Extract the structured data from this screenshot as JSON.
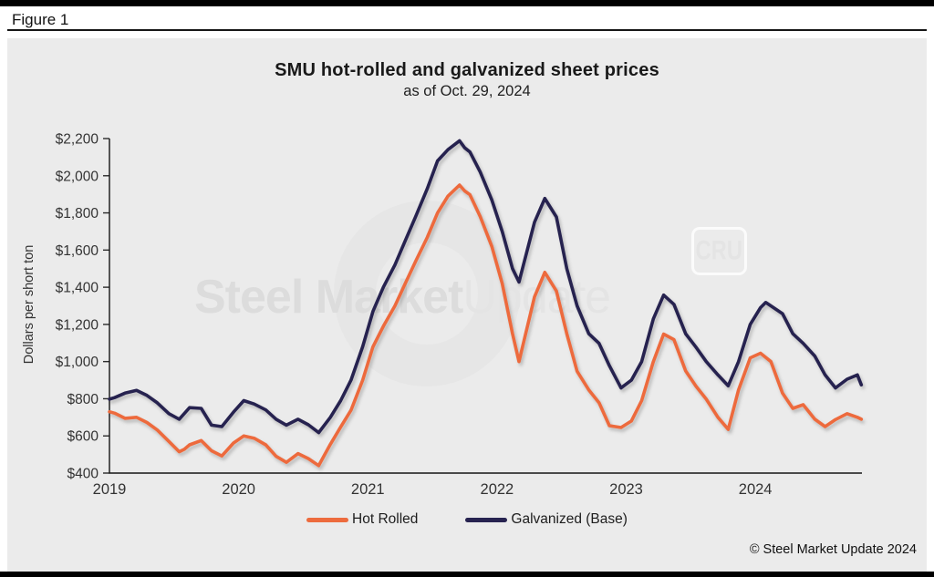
{
  "figure_label": "Figure 1",
  "copyright": "© Steel Market Update 2024",
  "watermark": {
    "bold": "Steel Market",
    "light": "Update",
    "badge": "CRU"
  },
  "colors": {
    "hot_rolled": "#ed6b3e",
    "galvanized": "#272350",
    "panel_background": "#ebebeb",
    "axis": "#141414"
  },
  "chart_data": {
    "type": "line",
    "title": "SMU hot-rolled and galvanized sheet prices",
    "subtitle": "as of Oct. 29, 2024",
    "ylabel": "Dollars per short ton",
    "xlabel": "",
    "ylim": [
      400,
      2200
    ],
    "x_range": [
      2019,
      2024.825
    ],
    "grid": false,
    "legend_position": "bottom",
    "yticks": [
      400,
      600,
      800,
      1000,
      1200,
      1400,
      1600,
      1800,
      2000,
      2200
    ],
    "ytick_labels": [
      "$400",
      "$600",
      "$800",
      "$1,000",
      "$1,200",
      "$1,400",
      "$1,600",
      "$1,800",
      "$2,000",
      "$2,200"
    ],
    "xticks": [
      2019,
      2020,
      2021,
      2022,
      2023,
      2024
    ],
    "x_unit": "year (decimal = fraction of year)",
    "y_unit": "USD per short ton",
    "series": [
      {
        "name": "Hot Rolled",
        "color": "#ed6b3e",
        "points": [
          [
            2019.0,
            730
          ],
          [
            2019.04,
            722
          ],
          [
            2019.12,
            695
          ],
          [
            2019.21,
            700
          ],
          [
            2019.29,
            672
          ],
          [
            2019.37,
            632
          ],
          [
            2019.46,
            570
          ],
          [
            2019.54,
            515
          ],
          [
            2019.58,
            528
          ],
          [
            2019.62,
            552
          ],
          [
            2019.71,
            575
          ],
          [
            2019.79,
            520
          ],
          [
            2019.87,
            492
          ],
          [
            2019.96,
            562
          ],
          [
            2020.04,
            600
          ],
          [
            2020.12,
            588
          ],
          [
            2020.21,
            552
          ],
          [
            2020.29,
            490
          ],
          [
            2020.37,
            458
          ],
          [
            2020.46,
            505
          ],
          [
            2020.54,
            478
          ],
          [
            2020.62,
            440
          ],
          [
            2020.71,
            555
          ],
          [
            2020.79,
            648
          ],
          [
            2020.87,
            738
          ],
          [
            2020.96,
            900
          ],
          [
            2021.04,
            1080
          ],
          [
            2021.12,
            1190
          ],
          [
            2021.21,
            1300
          ],
          [
            2021.29,
            1420
          ],
          [
            2021.37,
            1540
          ],
          [
            2021.46,
            1668
          ],
          [
            2021.54,
            1800
          ],
          [
            2021.62,
            1890
          ],
          [
            2021.71,
            1950
          ],
          [
            2021.75,
            1918
          ],
          [
            2021.79,
            1898
          ],
          [
            2021.87,
            1780
          ],
          [
            2021.96,
            1620
          ],
          [
            2022.04,
            1420
          ],
          [
            2022.12,
            1150
          ],
          [
            2022.17,
            1000
          ],
          [
            2022.29,
            1348
          ],
          [
            2022.37,
            1480
          ],
          [
            2022.46,
            1380
          ],
          [
            2022.54,
            1150
          ],
          [
            2022.62,
            948
          ],
          [
            2022.71,
            848
          ],
          [
            2022.79,
            778
          ],
          [
            2022.87,
            655
          ],
          [
            2022.96,
            645
          ],
          [
            2023.04,
            680
          ],
          [
            2023.12,
            790
          ],
          [
            2023.21,
            1000
          ],
          [
            2023.29,
            1148
          ],
          [
            2023.37,
            1118
          ],
          [
            2023.46,
            950
          ],
          [
            2023.54,
            868
          ],
          [
            2023.62,
            798
          ],
          [
            2023.71,
            700
          ],
          [
            2023.79,
            635
          ],
          [
            2023.87,
            848
          ],
          [
            2023.96,
            1020
          ],
          [
            2024.04,
            1045
          ],
          [
            2024.12,
            1000
          ],
          [
            2024.21,
            830
          ],
          [
            2024.29,
            748
          ],
          [
            2024.37,
            768
          ],
          [
            2024.46,
            690
          ],
          [
            2024.54,
            650
          ],
          [
            2024.62,
            688
          ],
          [
            2024.71,
            720
          ],
          [
            2024.79,
            700
          ],
          [
            2024.82,
            690
          ]
        ]
      },
      {
        "name": "Galvanized (Base)",
        "color": "#272350",
        "points": [
          [
            2019.0,
            798
          ],
          [
            2019.04,
            806
          ],
          [
            2019.12,
            830
          ],
          [
            2019.21,
            845
          ],
          [
            2019.29,
            818
          ],
          [
            2019.37,
            778
          ],
          [
            2019.46,
            720
          ],
          [
            2019.54,
            690
          ],
          [
            2019.62,
            752
          ],
          [
            2019.71,
            748
          ],
          [
            2019.79,
            658
          ],
          [
            2019.87,
            650
          ],
          [
            2019.96,
            728
          ],
          [
            2020.04,
            790
          ],
          [
            2020.12,
            772
          ],
          [
            2020.21,
            740
          ],
          [
            2020.29,
            690
          ],
          [
            2020.37,
            658
          ],
          [
            2020.46,
            690
          ],
          [
            2020.54,
            660
          ],
          [
            2020.62,
            618
          ],
          [
            2020.71,
            700
          ],
          [
            2020.79,
            790
          ],
          [
            2020.87,
            900
          ],
          [
            2020.96,
            1080
          ],
          [
            2021.04,
            1270
          ],
          [
            2021.12,
            1400
          ],
          [
            2021.21,
            1520
          ],
          [
            2021.29,
            1650
          ],
          [
            2021.37,
            1780
          ],
          [
            2021.46,
            1930
          ],
          [
            2021.54,
            2080
          ],
          [
            2021.62,
            2140
          ],
          [
            2021.71,
            2188
          ],
          [
            2021.75,
            2150
          ],
          [
            2021.79,
            2128
          ],
          [
            2021.87,
            2020
          ],
          [
            2021.96,
            1870
          ],
          [
            2022.04,
            1700
          ],
          [
            2022.12,
            1500
          ],
          [
            2022.17,
            1428
          ],
          [
            2022.29,
            1750
          ],
          [
            2022.37,
            1878
          ],
          [
            2022.46,
            1778
          ],
          [
            2022.54,
            1500
          ],
          [
            2022.62,
            1300
          ],
          [
            2022.71,
            1150
          ],
          [
            2022.79,
            1098
          ],
          [
            2022.87,
            978
          ],
          [
            2022.96,
            858
          ],
          [
            2023.04,
            900
          ],
          [
            2023.12,
            1000
          ],
          [
            2023.21,
            1230
          ],
          [
            2023.29,
            1358
          ],
          [
            2023.37,
            1308
          ],
          [
            2023.46,
            1150
          ],
          [
            2023.54,
            1078
          ],
          [
            2023.62,
            1000
          ],
          [
            2023.71,
            928
          ],
          [
            2023.79,
            870
          ],
          [
            2023.87,
            1000
          ],
          [
            2023.96,
            1200
          ],
          [
            2024.04,
            1290
          ],
          [
            2024.08,
            1318
          ],
          [
            2024.21,
            1258
          ],
          [
            2024.29,
            1150
          ],
          [
            2024.37,
            1098
          ],
          [
            2024.46,
            1030
          ],
          [
            2024.54,
            928
          ],
          [
            2024.62,
            858
          ],
          [
            2024.71,
            905
          ],
          [
            2024.79,
            928
          ],
          [
            2024.82,
            875
          ]
        ]
      }
    ]
  }
}
